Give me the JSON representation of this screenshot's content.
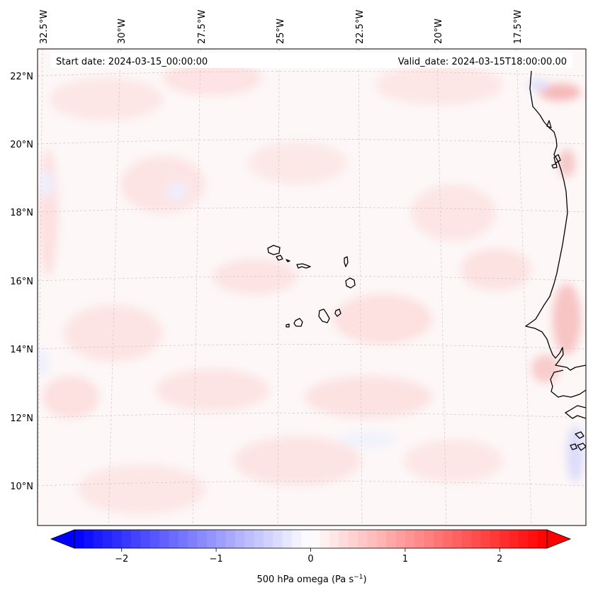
{
  "header": {
    "start_date": "Start date: 2024-03-15_00:00:00",
    "valid_date": "Valid_date: 2024-03-15T18:00:00.00"
  },
  "map": {
    "lon_labels": [
      "32.5°W",
      "30°W",
      "27.5°W",
      "25°W",
      "22.5°W",
      "20°W",
      "17.5°W"
    ],
    "lat_labels": [
      "22°N",
      "20°N",
      "18°N",
      "16°N",
      "14°N",
      "12°N",
      "10°N"
    ],
    "coastline_color": "#000000",
    "gridline_color": "#c8c8c8"
  },
  "colorbar": {
    "label": "500 hPa omega (Pa s",
    "label_superscript": "−1",
    "label_suffix": ")",
    "tick_labels": [
      "−2",
      "−1",
      "0",
      "1",
      "2"
    ],
    "ticks": [
      -2,
      -1,
      0,
      1,
      2
    ],
    "range": [
      -2.5,
      2.5
    ],
    "low_color": "#0000ff",
    "mid_color": "#ffffff",
    "high_color": "#ff0000"
  }
}
